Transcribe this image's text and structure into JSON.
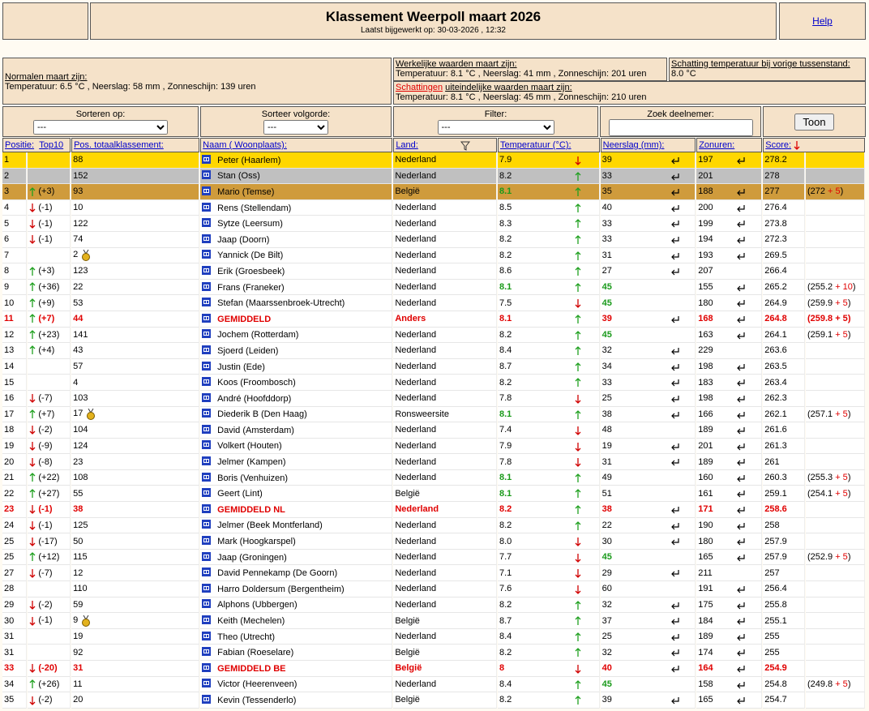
{
  "header": {
    "title": "Klassement Weerpoll maart 2026",
    "subtitle": "Laatst bijgewerkt op: 30-03-2026 , 12:32",
    "help": "Help"
  },
  "info": {
    "normals": {
      "label": "Normalen maart zijn:",
      "text": "Temperatuur: 6.5 °C , Neerslag: 58 mm , Zonneschijn: 139 uren"
    },
    "actual": {
      "label": "Werkelijke waarden maart zijn:",
      "text": "Temperatuur: 8.1 °C , Neerslag: 41 mm , Zonneschijn: 201 uren"
    },
    "previous": {
      "label": "Schatting temperatuur bij vorige tussenstand:",
      "text": "8.0 °C"
    },
    "forecast": {
      "link": "Schattingen",
      "label": "uiteindelijke waarden maart zijn:",
      "text": "Temperatuur: 8.1 °C , Neerslag: 45 mm , Zonneschijn: 210 uren"
    }
  },
  "controls": {
    "sort": {
      "label": "Sorteren op:",
      "value": "---"
    },
    "order": {
      "label": "Sorteer volgorde:",
      "value": "---"
    },
    "filter": {
      "label": "Filter:",
      "value": "---"
    },
    "search": {
      "label": "Zoek deelnemer:"
    },
    "button": "Toon"
  },
  "table": {
    "headers": {
      "position": "Positie:",
      "top10": "Top10",
      "total": "Pos. totaalklassement:",
      "name": "Naam ( Woonplaats):",
      "country": "Land:",
      "temp": "Temperatuur (°C):",
      "rain": "Neerslag (mm):",
      "sun": "Zonuren:",
      "score": "Score:"
    },
    "rows": [
      {
        "pos": "1",
        "total": "88",
        "name": "Peter (Haarlem)",
        "land": "Nederland",
        "temp": "7.9",
        "temp_dir": "down",
        "rain": "39",
        "rain_icon": true,
        "sun": "197",
        "sun_icon": true,
        "score": "278.2",
        "rank": "gold"
      },
      {
        "pos": "2",
        "total": "152",
        "name": "Stan (Oss)",
        "land": "Nederland",
        "temp": "8.2",
        "temp_dir": "up",
        "rain": "33",
        "rain_icon": true,
        "sun": "201",
        "score": "278",
        "rank": "silver"
      },
      {
        "pos": "3",
        "move": "up",
        "change": "(+3)",
        "total": "93",
        "name": "Mario (Temse)",
        "land": "België",
        "temp": "8.1",
        "temp_green": true,
        "temp_dir": "up",
        "rain": "35",
        "rain_icon": true,
        "sun": "188",
        "sun_icon": true,
        "score": "277",
        "extra": "(272",
        "bonus": "+ 5",
        "close": ")",
        "rank": "bronze"
      },
      {
        "pos": "4",
        "move": "down",
        "change": "(-1)",
        "total": "10",
        "name": "Rens (Stellendam)",
        "land": "Nederland",
        "temp": "8.5",
        "temp_dir": "up",
        "rain": "40",
        "rain_icon": true,
        "sun": "200",
        "sun_icon": true,
        "score": "276.4"
      },
      {
        "pos": "5",
        "move": "down",
        "change": "(-1)",
        "total": "122",
        "name": "Sytze (Leersum)",
        "land": "Nederland",
        "temp": "8.3",
        "temp_dir": "up",
        "rain": "33",
        "rain_icon": true,
        "sun": "199",
        "sun_icon": true,
        "score": "273.8"
      },
      {
        "pos": "6",
        "move": "down",
        "change": "(-1)",
        "total": "74",
        "name": "Jaap (Doorn)",
        "land": "Nederland",
        "temp": "8.2",
        "temp_dir": "up",
        "rain": "33",
        "rain_icon": true,
        "sun": "194",
        "sun_icon": true,
        "score": "272.3"
      },
      {
        "pos": "7",
        "total": "2",
        "medal": true,
        "name": "Yannick (De Bilt)",
        "land": "Nederland",
        "temp": "8.2",
        "temp_dir": "up",
        "rain": "31",
        "rain_icon": true,
        "sun": "193",
        "sun_icon": true,
        "score": "269.5"
      },
      {
        "pos": "8",
        "move": "up",
        "change": "(+3)",
        "total": "123",
        "name": "Erik (Groesbeek)",
        "land": "Nederland",
        "temp": "8.6",
        "temp_dir": "up",
        "rain": "27",
        "rain_icon": true,
        "sun": "207",
        "score": "266.4"
      },
      {
        "pos": "9",
        "move": "up",
        "change": "(+36)",
        "total": "22",
        "name": "Frans (Franeker)",
        "land": "Nederland",
        "temp": "8.1",
        "temp_green": true,
        "temp_dir": "up",
        "rain": "45",
        "rain_green": true,
        "sun": "155",
        "sun_icon": true,
        "score": "265.2",
        "extra": "(255.2",
        "bonus": "+ 10",
        "close": ")"
      },
      {
        "pos": "10",
        "move": "up",
        "change": "(+9)",
        "total": "53",
        "name": "Stefan (Maarssenbroek-Utrecht)",
        "land": "Nederland",
        "temp": "7.5",
        "temp_dir": "down",
        "rain": "45",
        "rain_green": true,
        "sun": "180",
        "sun_icon": true,
        "score": "264.9",
        "extra": "(259.9",
        "bonus": "+ 5",
        "close": ")"
      },
      {
        "pos": "11",
        "move": "up",
        "change": "(+7)",
        "total": "44",
        "name": "GEMIDDELD",
        "land": "Anders",
        "temp": "8.1",
        "temp_dir": "up",
        "rain": "39",
        "rain_icon": true,
        "sun": "168",
        "sun_icon": true,
        "score": "264.8",
        "extra": "(259.8",
        "bonus": "+ 5",
        "close": ")",
        "rank": "avg"
      },
      {
        "pos": "12",
        "move": "up",
        "change": "(+23)",
        "total": "141",
        "name": "Jochem (Rotterdam)",
        "land": "Nederland",
        "temp": "8.2",
        "temp_dir": "up",
        "rain": "45",
        "rain_green": true,
        "sun": "163",
        "sun_icon": true,
        "score": "264.1",
        "extra": "(259.1",
        "bonus": "+ 5",
        "close": ")"
      },
      {
        "pos": "13",
        "move": "up",
        "change": "(+4)",
        "total": "43",
        "name": "Sjoerd (Leiden)",
        "land": "Nederland",
        "temp": "8.4",
        "temp_dir": "up",
        "rain": "32",
        "rain_icon": true,
        "sun": "229",
        "score": "263.6"
      },
      {
        "pos": "14",
        "total": "57",
        "name": "Justin (Ede)",
        "land": "Nederland",
        "temp": "8.7",
        "temp_dir": "up",
        "rain": "34",
        "rain_icon": true,
        "sun": "198",
        "sun_icon": true,
        "score": "263.5"
      },
      {
        "pos": "15",
        "total": "4",
        "name": "Koos (Froombosch)",
        "land": "Nederland",
        "temp": "8.2",
        "temp_dir": "up",
        "rain": "33",
        "rain_icon": true,
        "sun": "183",
        "sun_icon": true,
        "score": "263.4"
      },
      {
        "pos": "16",
        "move": "down",
        "change": "(-7)",
        "total": "103",
        "name": "André (Hoofddorp)",
        "land": "Nederland",
        "temp": "7.8",
        "temp_dir": "down",
        "rain": "25",
        "rain_icon": true,
        "sun": "198",
        "sun_icon": true,
        "score": "262.3"
      },
      {
        "pos": "17",
        "move": "up",
        "change": "(+7)",
        "total": "17",
        "medal": true,
        "name": "Diederik B (Den Haag)",
        "land": "Ronsweersite",
        "temp": "8.1",
        "temp_green": true,
        "temp_dir": "up",
        "rain": "38",
        "rain_icon": true,
        "sun": "166",
        "sun_icon": true,
        "score": "262.1",
        "extra": "(257.1",
        "bonus": "+ 5",
        "close": ")"
      },
      {
        "pos": "18",
        "move": "down",
        "change": "(-2)",
        "total": "104",
        "name": "David (Amsterdam)",
        "land": "Nederland",
        "temp": "7.4",
        "temp_dir": "down",
        "rain": "48",
        "sun": "189",
        "sun_icon": true,
        "score": "261.6"
      },
      {
        "pos": "19",
        "move": "down",
        "change": "(-9)",
        "total": "124",
        "name": "Volkert (Houten)",
        "land": "Nederland",
        "temp": "7.9",
        "temp_dir": "down",
        "rain": "19",
        "rain_icon": true,
        "sun": "201",
        "sun_icon": true,
        "score": "261.3"
      },
      {
        "pos": "20",
        "move": "down",
        "change": "(-8)",
        "total": "23",
        "name": "Jelmer (Kampen)",
        "land": "Nederland",
        "temp": "7.8",
        "temp_dir": "down",
        "rain": "31",
        "rain_icon": true,
        "sun": "189",
        "sun_icon": true,
        "score": "261"
      },
      {
        "pos": "21",
        "move": "up",
        "change": "(+22)",
        "total": "108",
        "name": "Boris (Venhuizen)",
        "land": "Nederland",
        "temp": "8.1",
        "temp_green": true,
        "temp_dir": "up",
        "rain": "49",
        "sun": "160",
        "sun_icon": true,
        "score": "260.3",
        "extra": "(255.3",
        "bonus": "+ 5",
        "close": ")"
      },
      {
        "pos": "22",
        "move": "up",
        "change": "(+27)",
        "total": "55",
        "name": "Geert (Lint)",
        "land": "België",
        "temp": "8.1",
        "temp_green": true,
        "temp_dir": "up",
        "rain": "51",
        "sun": "161",
        "sun_icon": true,
        "score": "259.1",
        "extra": "(254.1",
        "bonus": "+ 5",
        "close": ")"
      },
      {
        "pos": "23",
        "move": "down",
        "change": "(-1)",
        "total": "38",
        "name": "GEMIDDELD NL",
        "land": "Nederland",
        "temp": "8.2",
        "temp_dir": "up",
        "rain": "38",
        "rain_icon": true,
        "sun": "171",
        "sun_icon": true,
        "score": "258.6",
        "rank": "avg"
      },
      {
        "pos": "24",
        "move": "down",
        "change": "(-1)",
        "total": "125",
        "name": "Jelmer (Beek Montferland)",
        "land": "Nederland",
        "temp": "8.2",
        "temp_dir": "up",
        "rain": "22",
        "rain_icon": true,
        "sun": "190",
        "sun_icon": true,
        "score": "258"
      },
      {
        "pos": "25",
        "move": "down",
        "change": "(-17)",
        "total": "50",
        "name": "Mark (Hoogkarspel)",
        "land": "Nederland",
        "temp": "8.0",
        "temp_dir": "down",
        "rain": "30",
        "rain_icon": true,
        "sun": "180",
        "sun_icon": true,
        "score": "257.9"
      },
      {
        "pos": "25",
        "move": "up",
        "change": "(+12)",
        "total": "115",
        "name": "Jaap (Groningen)",
        "land": "Nederland",
        "temp": "7.7",
        "temp_dir": "down",
        "rain": "45",
        "rain_green": true,
        "sun": "165",
        "sun_icon": true,
        "score": "257.9",
        "extra": "(252.9",
        "bonus": "+ 5",
        "close": ")"
      },
      {
        "pos": "27",
        "move": "down",
        "change": "(-7)",
        "total": "12",
        "name": "David Pennekamp (De Goorn)",
        "land": "Nederland",
        "temp": "7.1",
        "temp_dir": "down",
        "rain": "29",
        "rain_icon": true,
        "sun": "211",
        "score": "257"
      },
      {
        "pos": "28",
        "total": "110",
        "name": "Harro Doldersum (Bergentheim)",
        "land": "Nederland",
        "temp": "7.6",
        "temp_dir": "down",
        "rain": "60",
        "sun": "191",
        "sun_icon": true,
        "score": "256.4"
      },
      {
        "pos": "29",
        "move": "down",
        "change": "(-2)",
        "total": "59",
        "name": "Alphons (Ubbergen)",
        "land": "Nederland",
        "temp": "8.2",
        "temp_dir": "up",
        "rain": "32",
        "rain_icon": true,
        "sun": "175",
        "sun_icon": true,
        "score": "255.8"
      },
      {
        "pos": "30",
        "move": "down",
        "change": "(-1)",
        "total": "9",
        "medal": true,
        "name": "Keith (Mechelen)",
        "land": "België",
        "temp": "8.7",
        "temp_dir": "up",
        "rain": "37",
        "rain_icon": true,
        "sun": "184",
        "sun_icon": true,
        "score": "255.1"
      },
      {
        "pos": "31",
        "total": "19",
        "name": "Theo (Utrecht)",
        "land": "Nederland",
        "temp": "8.4",
        "temp_dir": "up",
        "rain": "25",
        "rain_icon": true,
        "sun": "189",
        "sun_icon": true,
        "score": "255"
      },
      {
        "pos": "31",
        "total": "92",
        "name": "Fabian (Roeselare)",
        "land": "België",
        "temp": "8.2",
        "temp_dir": "up",
        "rain": "32",
        "rain_icon": true,
        "sun": "174",
        "sun_icon": true,
        "score": "255"
      },
      {
        "pos": "33",
        "move": "down",
        "change": "(-20)",
        "total": "31",
        "name": "GEMIDDELD BE",
        "land": "België",
        "temp": "8",
        "temp_dir": "down",
        "rain": "40",
        "rain_icon": true,
        "sun": "164",
        "sun_icon": true,
        "score": "254.9",
        "rank": "avg"
      },
      {
        "pos": "34",
        "move": "up",
        "change": "(+26)",
        "total": "11",
        "name": "Victor (Heerenveen)",
        "land": "Nederland",
        "temp": "8.4",
        "temp_dir": "up",
        "rain": "45",
        "rain_green": true,
        "sun": "158",
        "sun_icon": true,
        "score": "254.8",
        "extra": "(249.8",
        "bonus": "+ 5",
        "close": ")"
      },
      {
        "pos": "35",
        "move": "down",
        "change": "(-2)",
        "total": "20",
        "name": "Kevin (Tessenderlo)",
        "land": "België",
        "temp": "8.2",
        "temp_dir": "up",
        "rain": "39",
        "rain_icon": true,
        "sun": "165",
        "sun_icon": true,
        "score": "254.7"
      }
    ]
  }
}
